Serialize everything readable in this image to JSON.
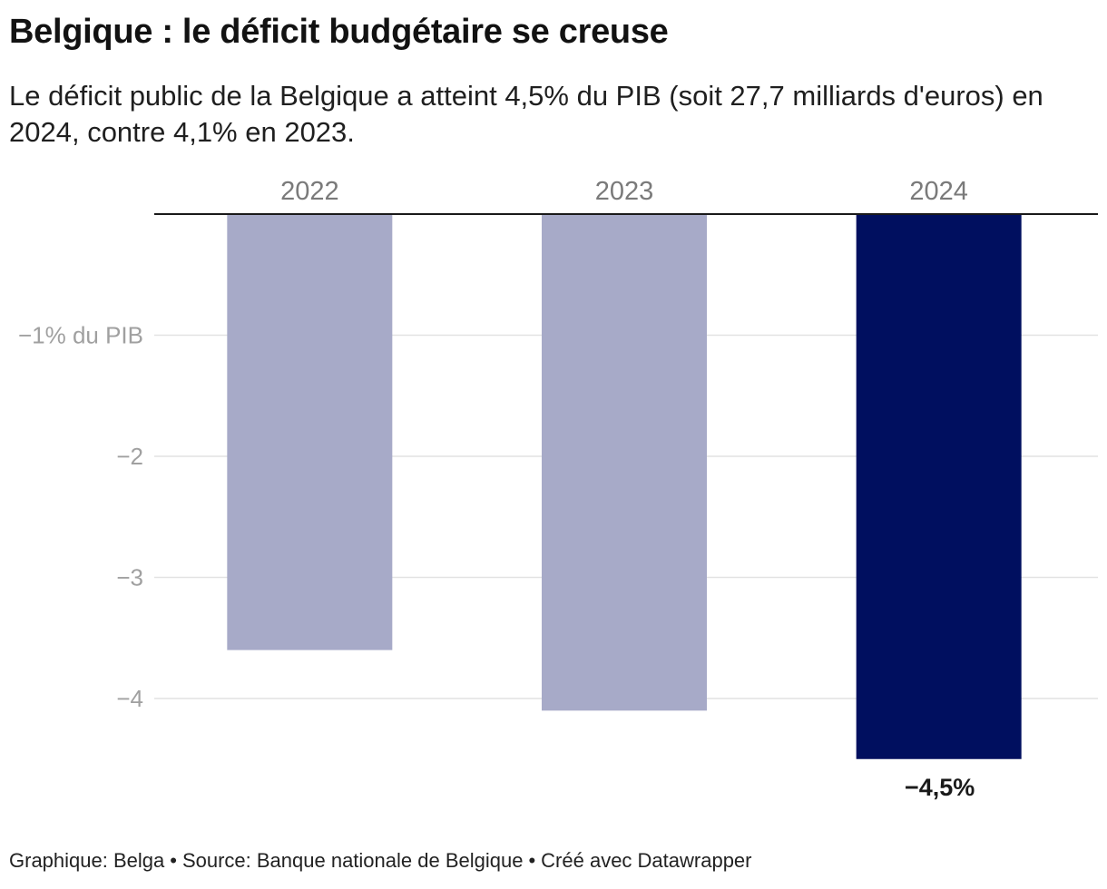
{
  "title": "Belgique : le déficit budgétaire se creuse",
  "subtitle": "Le déficit public de la Belgique a atteint 4,5% du PIB (soit 27,7 milliards d'euros) en 2024, contre 4,1% en 2023.",
  "chart_data": {
    "type": "bar",
    "categories": [
      "2022",
      "2023",
      "2024"
    ],
    "values": [
      -3.6,
      -4.1,
      -4.5
    ],
    "highlight_index": 2,
    "value_labels": [
      "",
      "",
      "−4,5%"
    ],
    "y_ticks": [
      -1,
      -2,
      -3,
      -4
    ],
    "y_tick_labels": [
      "−1% du PIB",
      "−2",
      "−3",
      "−4"
    ],
    "ylim": [
      -4.5,
      0
    ],
    "colors": {
      "bar": "#a7aac8",
      "highlight": "#000f5f",
      "grid": "#e2e2e2",
      "tick_label": "#a0a0a0",
      "category_label": "#7a7a7a",
      "baseline": "#1a1a1a"
    }
  },
  "footer": {
    "graphic": "Graphique: Belga",
    "source": "Source: Banque nationale de Belgique",
    "credit": "Créé avec Datawrapper",
    "separator": "•"
  }
}
